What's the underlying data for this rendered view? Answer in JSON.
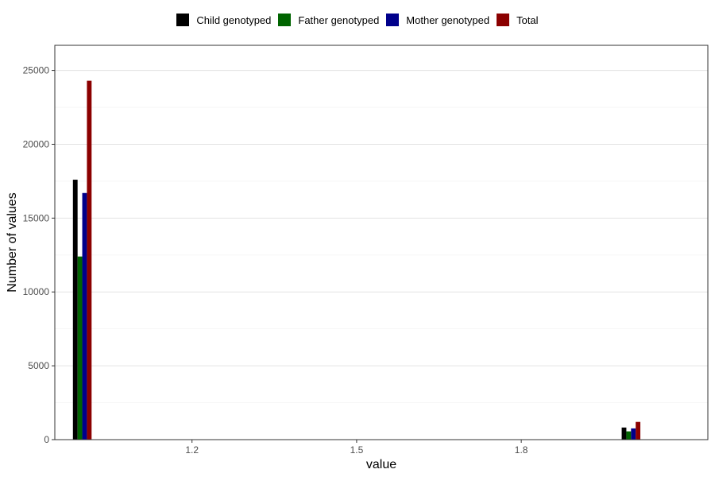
{
  "chart_data": {
    "type": "bar",
    "xlabel": "value",
    "ylabel": "Number of values",
    "xlim": [
      0.95,
      2.14
    ],
    "ylim": [
      0,
      26700
    ],
    "x_ticks": [
      1.2,
      1.5,
      1.8
    ],
    "y_ticks": [
      0,
      5000,
      10000,
      15000,
      20000,
      25000
    ],
    "y_minor_ticks": [
      2500,
      7500,
      12500,
      17500,
      22500
    ],
    "grid": true,
    "legend_position": "top",
    "bar_width": 0.0085,
    "categories": [
      1,
      2
    ],
    "series": [
      {
        "name": "Child genotyped",
        "color": "#000000",
        "values": [
          17600,
          820
        ]
      },
      {
        "name": "Father genotyped",
        "color": "#006400",
        "values": [
          12400,
          560
        ]
      },
      {
        "name": "Mother genotyped",
        "color": "#00008b",
        "values": [
          16700,
          760
        ]
      },
      {
        "name": "Total",
        "color": "#8b0000",
        "values": [
          24300,
          1200
        ]
      }
    ]
  }
}
